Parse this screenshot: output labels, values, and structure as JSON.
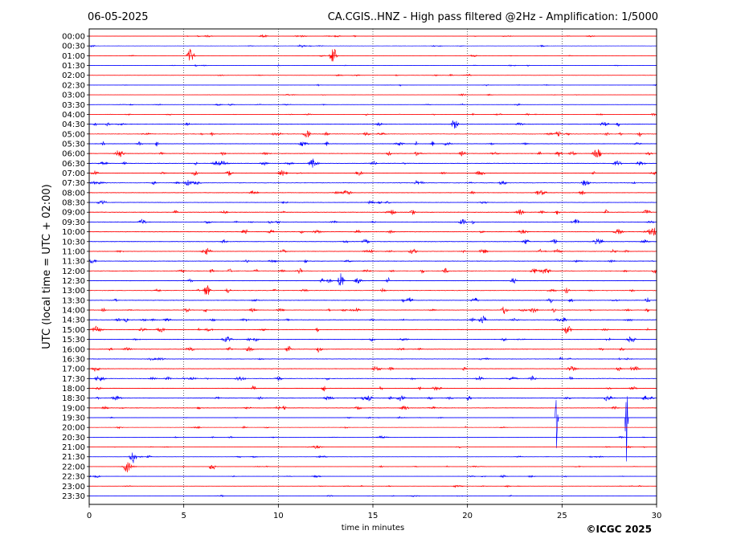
{
  "chart_data": {
    "type": "line",
    "title_left": "06-05-2025",
    "title": "CA.CGIS..HNZ - High pass filtered @2Hz - Amplification: 1/5000",
    "xlabel": "time in minutes",
    "ylabel": "UTC (local time = UTC + 02:00)",
    "copyright": "©ICGC 2025",
    "xlim": [
      0,
      30
    ],
    "x_ticks": [
      0,
      5,
      10,
      15,
      20,
      25,
      30
    ],
    "x_tick_labels": [
      "0",
      "5",
      "10",
      "15",
      "20",
      "25",
      "30"
    ],
    "grid_x": true,
    "series_colors": [
      "#ff0000",
      "#0000ff"
    ],
    "rows": [
      "00:00",
      "00:30",
      "01:00",
      "01:30",
      "02:00",
      "02:30",
      "03:00",
      "03:30",
      "04:00",
      "04:30",
      "05:00",
      "05:30",
      "06:00",
      "06:30",
      "07:00",
      "07:30",
      "08:00",
      "08:30",
      "09:00",
      "09:30",
      "10:00",
      "10:30",
      "11:00",
      "11:30",
      "12:00",
      "12:30",
      "13:00",
      "13:30",
      "14:00",
      "14:30",
      "15:00",
      "15:30",
      "16:00",
      "16:30",
      "17:00",
      "17:30",
      "18:00",
      "18:30",
      "19:00",
      "19:30",
      "20:00",
      "20:30",
      "21:00",
      "21:30",
      "22:00",
      "22:30",
      "23:00",
      "23:30"
    ],
    "events": [
      {
        "row": 2,
        "x": 5.35,
        "amp": 10
      },
      {
        "row": 2,
        "x": 12.9,
        "amp": 12
      },
      {
        "row": 9,
        "x": 19.3,
        "amp": 7
      },
      {
        "row": 10,
        "x": 11.5,
        "amp": 5
      },
      {
        "row": 12,
        "x": 26.9,
        "amp": 6
      },
      {
        "row": 13,
        "x": 11.8,
        "amp": 6
      },
      {
        "row": 20,
        "x": 29.8,
        "amp": 7
      },
      {
        "row": 25,
        "x": 13.3,
        "amp": 7
      },
      {
        "row": 26,
        "x": 6.2,
        "amp": 8
      },
      {
        "row": 29,
        "x": 20.8,
        "amp": 6
      },
      {
        "row": 43,
        "x": 2.3,
        "amp": 9
      },
      {
        "row": 44,
        "x": 2.0,
        "amp": 9
      },
      {
        "row": 44,
        "x": 6.5,
        "amp": 5
      },
      {
        "row": 39,
        "x": 24.7,
        "amp": 60
      },
      {
        "row": 39,
        "x": 28.4,
        "amp": 70
      }
    ]
  }
}
